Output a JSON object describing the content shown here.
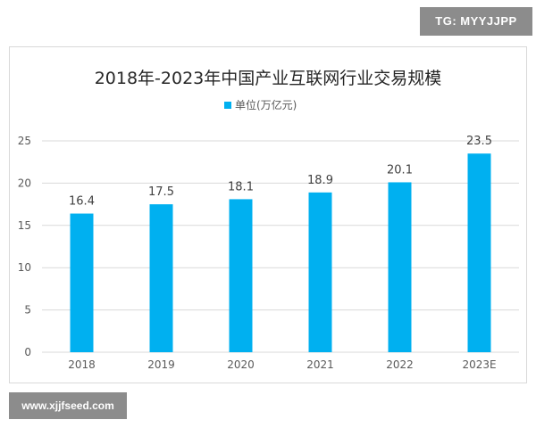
{
  "watermark_top": "TG: MYYJJPP",
  "watermark_bottom": "www.xjjfseed.com",
  "colors": {
    "bar": "#00b0f0",
    "grid": "#d9d9d9",
    "axis_text": "#595959",
    "label_text": "#404040",
    "title_text": "#262626"
  },
  "chart_data": {
    "type": "bar",
    "title": "2018年-2023年中国产业互联网行业交易规模",
    "legend": "top-center",
    "grid": true,
    "ylim": [
      0,
      25
    ],
    "yticks": [
      0,
      5,
      10,
      15,
      20,
      25
    ],
    "categories": [
      "2018",
      "2019",
      "2020",
      "2021",
      "2022",
      "2023E"
    ],
    "series": [
      {
        "name": "单位(万亿元)",
        "values": [
          16.4,
          17.5,
          18.1,
          18.9,
          20.1,
          23.5
        ],
        "labels": [
          "16.4",
          "17.5",
          "18.1",
          "18.9",
          "20.1",
          "23.5"
        ]
      }
    ]
  }
}
